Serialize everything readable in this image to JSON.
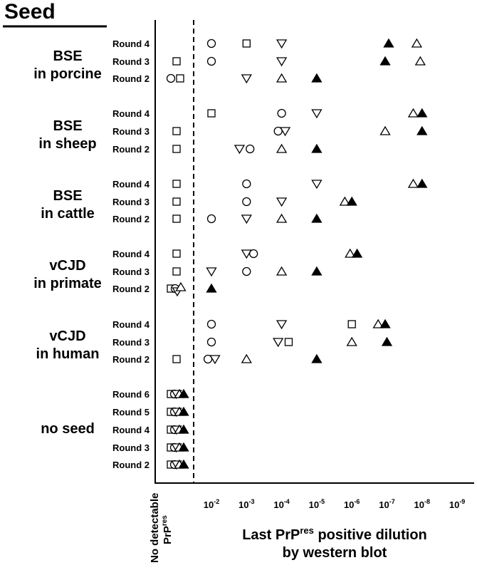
{
  "chart_data": {
    "type": "scatter",
    "title": "Seed",
    "xlabel_line1": "Last PrP",
    "xlabel_sup": "res",
    "xlabel_line1_end": " positive dilution",
    "xlabel_line2": "by western blot",
    "no_detect_label_line1": "No detectable",
    "no_detect_label_line2": "PrP",
    "no_detect_label_sup": "res",
    "x_ticks": [
      {
        "exp": 2,
        "label": "10",
        "sup": "-2"
      },
      {
        "exp": 3,
        "label": "10",
        "sup": "-3"
      },
      {
        "exp": 4,
        "label": "10",
        "sup": "-4"
      },
      {
        "exp": 5,
        "label": "10",
        "sup": "-5"
      },
      {
        "exp": 6,
        "label": "10",
        "sup": "-6"
      },
      {
        "exp": 7,
        "label": "10",
        "sup": "-7"
      },
      {
        "exp": 8,
        "label": "10",
        "sup": "-8"
      },
      {
        "exp": 9,
        "label": "10",
        "sup": "-9"
      }
    ],
    "marker_legend": {
      "circle": "open circle",
      "square": "open square",
      "triangle_down": "open inverted triangle",
      "triangle_up": "open triangle",
      "triangle_filled": "filled triangle"
    },
    "groups": [
      {
        "name_line1": "BSE",
        "name_line2": "in porcine",
        "rounds": [
          {
            "label": "Round 4",
            "points": [
              {
                "m": "circle",
                "x": 2
              },
              {
                "m": "square",
                "x": 3
              },
              {
                "m": "triangle_down",
                "x": 4
              },
              {
                "m": "triangle_filled",
                "x": 7.05
              },
              {
                "m": "triangle_up",
                "x": 7.85
              }
            ]
          },
          {
            "label": "Round 3",
            "points": [
              {
                "m": "square",
                "x": "none"
              },
              {
                "m": "circle",
                "x": 2
              },
              {
                "m": "triangle_down",
                "x": 4
              },
              {
                "m": "triangle_filled",
                "x": 6.95
              },
              {
                "m": "triangle_up",
                "x": 7.95
              }
            ]
          },
          {
            "label": "Round 2",
            "points": [
              {
                "m": "circle",
                "x": "none",
                "dx": -8
              },
              {
                "m": "square",
                "x": "none",
                "dx": 5
              },
              {
                "m": "triangle_down",
                "x": 3
              },
              {
                "m": "triangle_up",
                "x": 4
              },
              {
                "m": "triangle_filled",
                "x": 5
              }
            ]
          }
        ]
      },
      {
        "name_line1": "BSE",
        "name_line2": "in sheep",
        "rounds": [
          {
            "label": "Round 4",
            "points": [
              {
                "m": "square",
                "x": 2
              },
              {
                "m": "circle",
                "x": 4
              },
              {
                "m": "triangle_down",
                "x": 5
              },
              {
                "m": "triangle_up",
                "x": 7.75
              },
              {
                "m": "triangle_filled",
                "x": 8
              }
            ]
          },
          {
            "label": "Round 3",
            "points": [
              {
                "m": "square",
                "x": "none"
              },
              {
                "m": "circle",
                "x": 3.9
              },
              {
                "m": "triangle_down",
                "x": 4.1
              },
              {
                "m": "triangle_up",
                "x": 6.95
              },
              {
                "m": "triangle_filled",
                "x": 8
              }
            ]
          },
          {
            "label": "Round 2",
            "points": [
              {
                "m": "square",
                "x": "none"
              },
              {
                "m": "triangle_down",
                "x": 2.8
              },
              {
                "m": "circle",
                "x": 3.1
              },
              {
                "m": "triangle_up",
                "x": 4
              },
              {
                "m": "triangle_filled",
                "x": 5
              }
            ]
          }
        ]
      },
      {
        "name_line1": "BSE",
        "name_line2": "in cattle",
        "rounds": [
          {
            "label": "Round 4",
            "points": [
              {
                "m": "square",
                "x": "none"
              },
              {
                "m": "circle",
                "x": 3
              },
              {
                "m": "triangle_down",
                "x": 5
              },
              {
                "m": "triangle_up",
                "x": 7.75
              },
              {
                "m": "triangle_filled",
                "x": 8
              }
            ]
          },
          {
            "label": "Round 3",
            "points": [
              {
                "m": "square",
                "x": "none"
              },
              {
                "m": "circle",
                "x": 3
              },
              {
                "m": "triangle_down",
                "x": 4
              },
              {
                "m": "triangle_up",
                "x": 5.8
              },
              {
                "m": "triangle_filled",
                "x": 6
              }
            ]
          },
          {
            "label": "Round 2",
            "points": [
              {
                "m": "square",
                "x": "none"
              },
              {
                "m": "circle",
                "x": 2
              },
              {
                "m": "triangle_down",
                "x": 3
              },
              {
                "m": "triangle_up",
                "x": 4
              },
              {
                "m": "triangle_filled",
                "x": 5
              }
            ]
          }
        ]
      },
      {
        "name_line1": "vCJD",
        "name_line2": "in primate",
        "rounds": [
          {
            "label": "Round 4",
            "points": [
              {
                "m": "square",
                "x": "none"
              },
              {
                "m": "triangle_down",
                "x": 3
              },
              {
                "m": "circle",
                "x": 3.2
              },
              {
                "m": "triangle_up",
                "x": 5.95
              },
              {
                "m": "triangle_filled",
                "x": 6.15
              }
            ]
          },
          {
            "label": "Round 3",
            "points": [
              {
                "m": "square",
                "x": "none"
              },
              {
                "m": "triangle_down",
                "x": 2
              },
              {
                "m": "circle",
                "x": 3
              },
              {
                "m": "triangle_up",
                "x": 4
              },
              {
                "m": "triangle_filled",
                "x": 5
              }
            ]
          },
          {
            "label": "Round 2",
            "points": [
              {
                "m": "square",
                "x": "none",
                "dx": -8
              },
              {
                "m": "circle",
                "x": "none",
                "dx": -2
              },
              {
                "m": "triangle_down",
                "x": "none",
                "dx": 1,
                "dy": 4
              },
              {
                "m": "triangle_up",
                "x": "none",
                "dx": 6,
                "dy": -2
              },
              {
                "m": "triangle_filled",
                "x": 2
              }
            ]
          }
        ]
      },
      {
        "name_line1": "vCJD",
        "name_line2": "in human",
        "rounds": [
          {
            "label": "Round 4",
            "points": [
              {
                "m": "circle",
                "x": 2
              },
              {
                "m": "triangle_down",
                "x": 4
              },
              {
                "m": "square",
                "x": 6
              },
              {
                "m": "triangle_up",
                "x": 6.75
              },
              {
                "m": "triangle_filled",
                "x": 6.95
              }
            ]
          },
          {
            "label": "Round 3",
            "points": [
              {
                "m": "circle",
                "x": 2
              },
              {
                "m": "triangle_down",
                "x": 3.9
              },
              {
                "m": "square",
                "x": 4.2
              },
              {
                "m": "triangle_up",
                "x": 6
              },
              {
                "m": "triangle_filled",
                "x": 7
              }
            ]
          },
          {
            "label": "Round 2",
            "points": [
              {
                "m": "square",
                "x": "none"
              },
              {
                "m": "circle",
                "x": 1.9
              },
              {
                "m": "triangle_down",
                "x": 2.1
              },
              {
                "m": "triangle_up",
                "x": 3
              },
              {
                "m": "triangle_filled",
                "x": 5
              }
            ]
          }
        ]
      },
      {
        "name_line1": "no seed",
        "name_line2": "",
        "rounds": [
          {
            "label": "Round 6",
            "points": [
              {
                "m": "square",
                "x": "none",
                "dx": -8
              },
              {
                "m": "circle",
                "x": "none",
                "dx": -3
              },
              {
                "m": "triangle_down",
                "x": "none",
                "dx": 0
              },
              {
                "m": "triangle_up",
                "x": "none",
                "dx": 4
              },
              {
                "m": "triangle_filled",
                "x": "none",
                "dx": 10
              }
            ]
          },
          {
            "label": "Round 5",
            "points": [
              {
                "m": "square",
                "x": "none",
                "dx": -8
              },
              {
                "m": "circle",
                "x": "none",
                "dx": -3
              },
              {
                "m": "triangle_down",
                "x": "none",
                "dx": 0
              },
              {
                "m": "triangle_up",
                "x": "none",
                "dx": 4
              },
              {
                "m": "triangle_filled",
                "x": "none",
                "dx": 10
              }
            ]
          },
          {
            "label": "Round 4",
            "points": [
              {
                "m": "square",
                "x": "none",
                "dx": -8
              },
              {
                "m": "circle",
                "x": "none",
                "dx": -3
              },
              {
                "m": "triangle_down",
                "x": "none",
                "dx": 0
              },
              {
                "m": "triangle_up",
                "x": "none",
                "dx": 4
              },
              {
                "m": "triangle_filled",
                "x": "none",
                "dx": 10
              }
            ]
          },
          {
            "label": "Round 3",
            "points": [
              {
                "m": "square",
                "x": "none",
                "dx": -8
              },
              {
                "m": "circle",
                "x": "none",
                "dx": -3
              },
              {
                "m": "triangle_down",
                "x": "none",
                "dx": 0
              },
              {
                "m": "triangle_up",
                "x": "none",
                "dx": 4
              },
              {
                "m": "triangle_filled",
                "x": "none",
                "dx": 10
              }
            ]
          },
          {
            "label": "Round 2",
            "points": [
              {
                "m": "square",
                "x": "none",
                "dx": -8
              },
              {
                "m": "circle",
                "x": "none",
                "dx": -3
              },
              {
                "m": "triangle_down",
                "x": "none",
                "dx": 0
              },
              {
                "m": "triangle_up",
                "x": "none",
                "dx": 4
              },
              {
                "m": "triangle_filled",
                "x": "none",
                "dx": 10
              }
            ]
          }
        ]
      }
    ]
  }
}
